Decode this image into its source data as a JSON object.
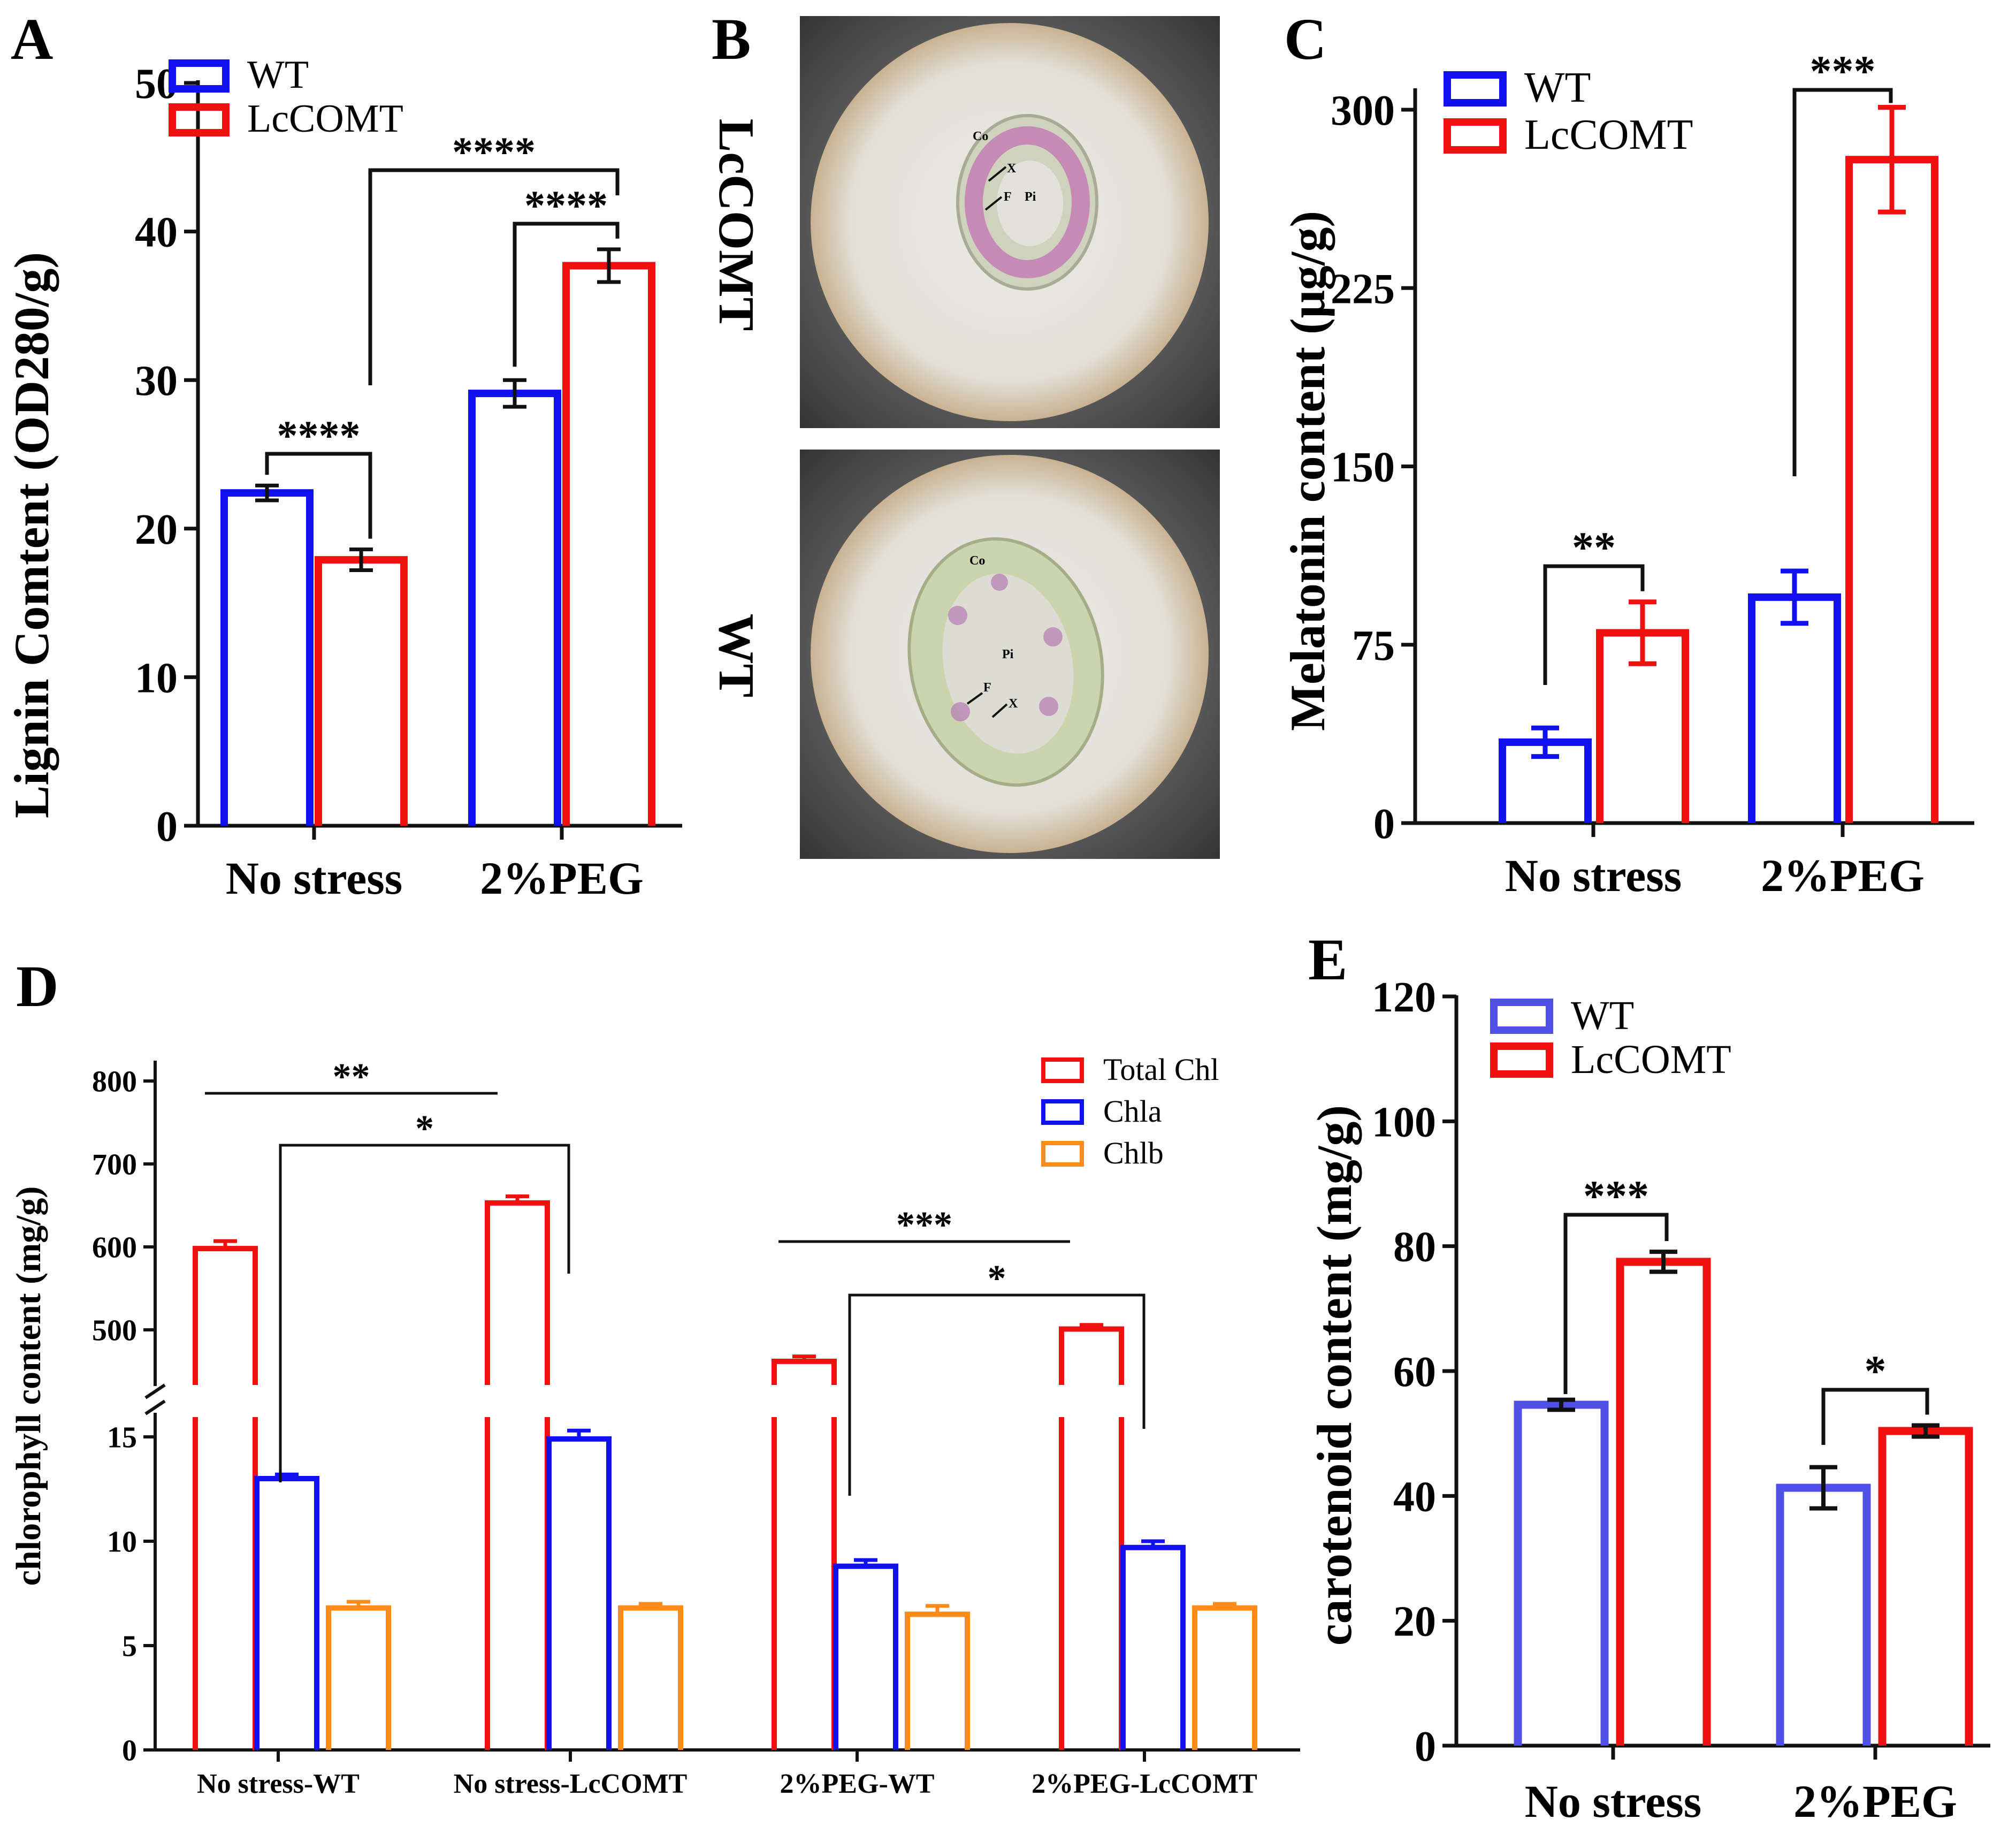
{
  "colors": {
    "wt": "#1010f0",
    "lccomt": "#f01010",
    "chlb": "#ff8c1a",
    "e_wt": "#5050e8",
    "axis": "#111111"
  },
  "chart_data": [
    {
      "panel": "A",
      "type": "bar",
      "ylabel": "Lignin Comtent (OD280/g)",
      "categories": [
        "No stress",
        "2%PEG"
      ],
      "ylim": [
        0,
        50
      ],
      "yticks": [
        "0",
        "10",
        "20",
        "30",
        "40",
        "50"
      ],
      "legend": [
        "WT",
        "LcCOMT"
      ],
      "series": [
        {
          "name": "WT",
          "values": [
            22.4,
            29.1
          ],
          "errors": [
            0.5,
            0.9
          ]
        },
        {
          "name": "LcCOMT",
          "values": [
            17.9,
            37.7
          ],
          "errors": [
            0.7,
            1.1
          ]
        }
      ],
      "significance": [
        "****",
        "****",
        "****"
      ]
    },
    {
      "panel": "B",
      "type": "image",
      "rows": [
        {
          "label": "LcCOMT",
          "tissue_labels": [
            "Co",
            "X",
            "F",
            "Pi"
          ]
        },
        {
          "label": "WT",
          "tissue_labels": [
            "Co",
            "Pi",
            "F",
            "X"
          ]
        }
      ]
    },
    {
      "panel": "C",
      "type": "bar",
      "ylabel": "Melatonin content (μg/g)",
      "categories": [
        "No stress",
        "2%PEG"
      ],
      "ylim": [
        0,
        320
      ],
      "yticks": [
        "0",
        "75",
        "150",
        "225",
        "300"
      ],
      "legend": [
        "WT",
        "LcCOMT"
      ],
      "series": [
        {
          "name": "WT",
          "values": [
            34,
            95
          ],
          "errors": [
            6,
            11
          ]
        },
        {
          "name": "LcCOMT",
          "values": [
            80,
            279
          ],
          "errors": [
            13,
            22
          ]
        }
      ],
      "significance": [
        "**",
        "***"
      ]
    },
    {
      "panel": "D",
      "type": "bar",
      "ylabel": "chlorophyll content (mg/g)",
      "axis_break": {
        "lower": [
          0,
          16
        ],
        "upper": [
          430,
          800
        ]
      },
      "yticks_lower": [
        "0",
        "5",
        "10",
        "15"
      ],
      "yticks_upper": [
        "500",
        "600",
        "700",
        "800"
      ],
      "categories": [
        "No stress-WT",
        "No stress-LcCOMT",
        "2%PEG-WT",
        "2%PEG-LcCOMT"
      ],
      "legend": [
        "Total Chl",
        "Chla",
        "Chlb"
      ],
      "series": [
        {
          "name": "Total Chl",
          "values": [
            598,
            653,
            462,
            501
          ],
          "errors": [
            9,
            8,
            6,
            5
          ]
        },
        {
          "name": "Chla",
          "values": [
            13.0,
            14.9,
            8.8,
            9.7
          ],
          "errors": [
            0.2,
            0.4,
            0.3,
            0.3
          ]
        },
        {
          "name": "Chlb",
          "values": [
            6.8,
            6.8,
            6.5,
            6.8
          ],
          "errors": [
            0.3,
            0.2,
            0.4,
            0.2
          ]
        }
      ],
      "significance": [
        "**",
        "*",
        "***",
        "*"
      ]
    },
    {
      "panel": "E",
      "type": "bar",
      "ylabel": "carotenoid content (mg/g)",
      "categories": [
        "No stress",
        "2%PEG"
      ],
      "ylim": [
        0,
        120
      ],
      "yticks": [
        "0",
        "20",
        "40",
        "60",
        "80",
        "100",
        "120"
      ],
      "legend": [
        "WT",
        "LcCOMT"
      ],
      "series": [
        {
          "name": "WT",
          "values": [
            54.6,
            41.3
          ],
          "errors": [
            0.8,
            3.3
          ]
        },
        {
          "name": "LcCOMT",
          "values": [
            77.5,
            50.4
          ],
          "errors": [
            1.6,
            0.9
          ]
        }
      ],
      "significance": [
        "***",
        "*"
      ]
    }
  ]
}
